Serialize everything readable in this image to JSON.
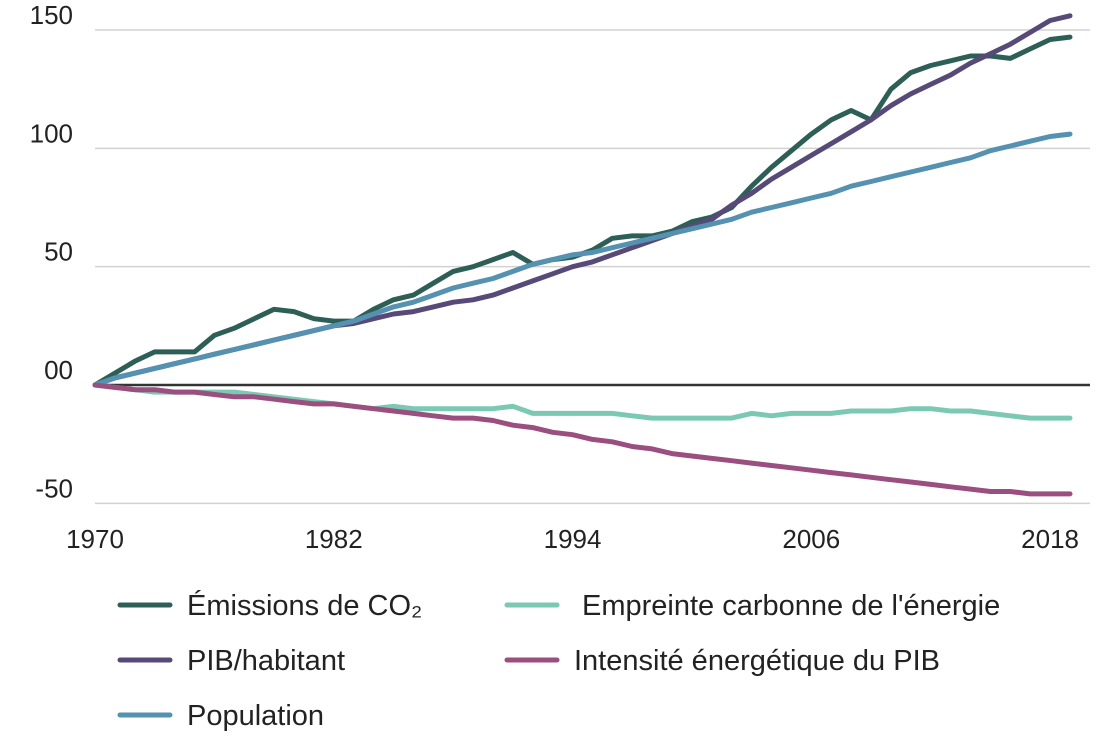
{
  "chart_data": {
    "type": "line",
    "title": "",
    "xlabel": "",
    "ylabel": "",
    "xlim": [
      1970,
      2018
    ],
    "ylim": [
      -50,
      150
    ],
    "x_ticks": [
      1970,
      1982,
      1994,
      2006,
      2018
    ],
    "y_ticks": [
      {
        "value": 150,
        "label": "150"
      },
      {
        "value": 100,
        "label": "100"
      },
      {
        "value": 50,
        "label": "50"
      },
      {
        "value": 0,
        "label": "00"
      },
      {
        "value": -50,
        "label": "-50"
      }
    ],
    "grid": true,
    "legend_position": "bottom",
    "x": [
      1970,
      1971,
      1972,
      1973,
      1974,
      1975,
      1976,
      1977,
      1978,
      1979,
      1980,
      1981,
      1982,
      1983,
      1984,
      1985,
      1986,
      1987,
      1988,
      1989,
      1990,
      1991,
      1992,
      1993,
      1994,
      1995,
      1996,
      1997,
      1998,
      1999,
      2000,
      2001,
      2002,
      2003,
      2004,
      2005,
      2006,
      2007,
      2008,
      2009,
      2010,
      2011,
      2012,
      2013,
      2014,
      2015,
      2016,
      2017,
      2018,
      2019
    ],
    "series": [
      {
        "name": "Émissions de CO₂",
        "color": "#2d5f56",
        "values": [
          0,
          5,
          10,
          14,
          14,
          14,
          21,
          24,
          28,
          32,
          31,
          28,
          27,
          27,
          32,
          36,
          38,
          43,
          48,
          50,
          53,
          56,
          51,
          53,
          54,
          57,
          62,
          63,
          63,
          65,
          69,
          71,
          75,
          84,
          92,
          99,
          106,
          112,
          116,
          112,
          125,
          132,
          135,
          137,
          139,
          139,
          138,
          142,
          146,
          147
        ]
      },
      {
        "name": "PIB/habitant",
        "color": "#574a78",
        "values": [
          0,
          3,
          5,
          7,
          9,
          11,
          13,
          15,
          17,
          19,
          21,
          23,
          25,
          26,
          28,
          30,
          31,
          33,
          35,
          36,
          38,
          41,
          44,
          47,
          50,
          52,
          55,
          58,
          61,
          64,
          67,
          70,
          76,
          81,
          87,
          92,
          97,
          102,
          107,
          112,
          118,
          123,
          127,
          131,
          136,
          140,
          144,
          149,
          154,
          156
        ]
      },
      {
        "name": "Population",
        "color": "#5591b0",
        "values": [
          0,
          3,
          5,
          7,
          9,
          11,
          13,
          15,
          17,
          19,
          21,
          23,
          25,
          27,
          30,
          33,
          35,
          38,
          41,
          43,
          45,
          48,
          51,
          53,
          55,
          56,
          58,
          60,
          62,
          64,
          66,
          68,
          70,
          73,
          75,
          77,
          79,
          81,
          84,
          86,
          88,
          90,
          92,
          94,
          96,
          99,
          101,
          103,
          105,
          106
        ]
      },
      {
        "name": "Empreinte carbonne de l'énergie",
        "color": "#7cc9b3",
        "values": [
          0,
          -1,
          -2,
          -3,
          -3,
          -3,
          -3,
          -3,
          -4,
          -5,
          -6,
          -7,
          -8,
          -9,
          -10,
          -9,
          -10,
          -10,
          -10,
          -10,
          -10,
          -9,
          -12,
          -12,
          -12,
          -12,
          -12,
          -13,
          -14,
          -14,
          -14,
          -14,
          -14,
          -12,
          -13,
          -12,
          -12,
          -12,
          -11,
          -11,
          -11,
          -10,
          -10,
          -11,
          -11,
          -12,
          -13,
          -14,
          -14,
          -14
        ]
      },
      {
        "name": "Intensité énergétique du PIB",
        "color": "#9a4f80",
        "values": [
          0,
          -1,
          -2,
          -2,
          -3,
          -3,
          -4,
          -5,
          -5,
          -6,
          -7,
          -8,
          -8,
          -9,
          -10,
          -11,
          -12,
          -13,
          -14,
          -14,
          -15,
          -17,
          -18,
          -20,
          -21,
          -23,
          -24,
          -26,
          -27,
          -29,
          -30,
          -31,
          -32,
          -33,
          -34,
          -35,
          -36,
          -37,
          -38,
          -39,
          -40,
          -41,
          -42,
          -43,
          -44,
          -45,
          -45,
          -46,
          -46,
          -46
        ]
      }
    ]
  }
}
